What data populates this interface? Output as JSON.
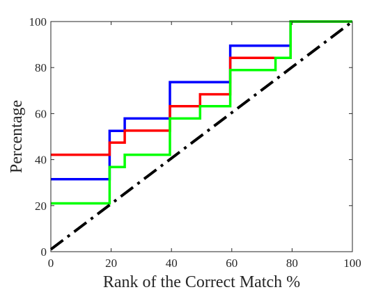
{
  "chart_data": {
    "type": "line",
    "title": "",
    "xlabel": "Rank of the Correct Match %",
    "ylabel": "Percentage",
    "xlim": [
      0,
      100
    ],
    "ylim": [
      0,
      100
    ],
    "xticks": [
      0,
      20,
      40,
      60,
      80,
      100
    ],
    "yticks": [
      0,
      20,
      40,
      60,
      80,
      100
    ],
    "grid": false,
    "series": [
      {
        "color": "#0000ff",
        "style": "solid",
        "x": [
          0,
          19.5,
          19.5,
          20.5,
          20.5,
          24.5,
          24.5,
          39.5,
          39.5,
          59.5,
          59.5,
          79.5,
          79.5,
          100
        ],
        "y": [
          31.5,
          31.5,
          52.5,
          52.5,
          52.5,
          52.5,
          57.9,
          57.9,
          73.7,
          73.7,
          89.5,
          89.5,
          100,
          100
        ]
      },
      {
        "color": "#ff0000",
        "style": "solid",
        "x": [
          0,
          19.5,
          19.5,
          21.5,
          21.5,
          24.5,
          24.5,
          39.5,
          39.5,
          49.5,
          49.5,
          59.5,
          59.5,
          74.5,
          74.5,
          79.5,
          79.5,
          100
        ],
        "y": [
          42.1,
          42.1,
          47.4,
          47.4,
          47.4,
          47.4,
          52.6,
          52.6,
          63.2,
          63.2,
          68.4,
          68.4,
          84.2,
          84.2,
          84.2,
          84.2,
          100,
          100
        ]
      },
      {
        "color": "#00ff00",
        "style": "solid",
        "x": [
          0,
          19.5,
          19.5,
          22.5,
          22.5,
          24.5,
          24.5,
          39.5,
          39.5,
          49.5,
          49.5,
          59.5,
          59.5,
          74.5,
          74.5,
          79.5,
          79.5,
          100
        ],
        "y": [
          21.0,
          21.0,
          36.8,
          36.8,
          36.8,
          36.8,
          42.1,
          42.1,
          57.9,
          57.9,
          63.2,
          63.2,
          78.9,
          78.9,
          84.2,
          84.2,
          100,
          100
        ]
      },
      {
        "color": "#000000",
        "style": "dash-dot",
        "x": [
          0,
          100
        ],
        "y": [
          1,
          100
        ]
      }
    ]
  }
}
